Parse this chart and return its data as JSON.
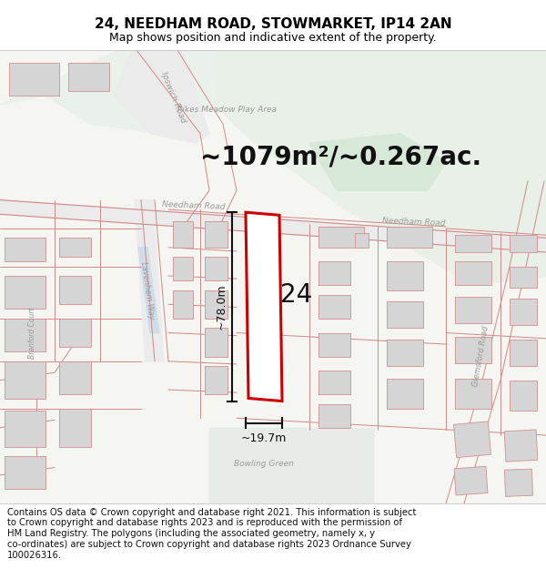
{
  "title_line1": "24, NEEDHAM ROAD, STOWMARKET, IP14 2AN",
  "title_line2": "Map shows position and indicative extent of the property.",
  "area_label": "~1079m²/~0.267ac.",
  "width_label": "~19.7m",
  "height_label": "~78.0m",
  "number_label": "24",
  "road_label_needham1": "Needham Road",
  "road_label_needham2": "Needham Road",
  "road_label_ipswich": "Ipswich Road",
  "road_label_lavenham": "Lavenham Way",
  "road_label_branford": "Branford Court",
  "road_label_glemsford": "Glemsford Road",
  "road_label_bowling": "Bowling Green",
  "road_label_pikes": "Pikes Meadow Play Area",
  "footer_text": "Contains OS data © Crown copyright and database right 2021. This information is subject to Crown copyright and database rights 2023 and is reproduced with the permission of HM Land Registry. The polygons (including the associated geometry, namely x, y co-ordinates) are subject to Crown copyright and database rights 2023 Ordnance Survey 100026316.",
  "map_bg": "#f5f5f2",
  "park_color_main": "#e8f0e8",
  "park_blob_color": "#d8e8d8",
  "park_left_color": "#eaf0ea",
  "blue_strip": "#d0dce8",
  "road_fill": "#ebebeb",
  "plot_fill": "#ffffff",
  "plot_border": "#cc0000",
  "building_fill": "#d8d8d8",
  "building_border": "#e09090",
  "lot_border": "#e09090",
  "dim_line_color": "#111111",
  "text_gray": "#999999",
  "title_fontsize": 11,
  "subtitle_fontsize": 9,
  "area_fontsize": 20,
  "footer_fontsize": 7.2
}
